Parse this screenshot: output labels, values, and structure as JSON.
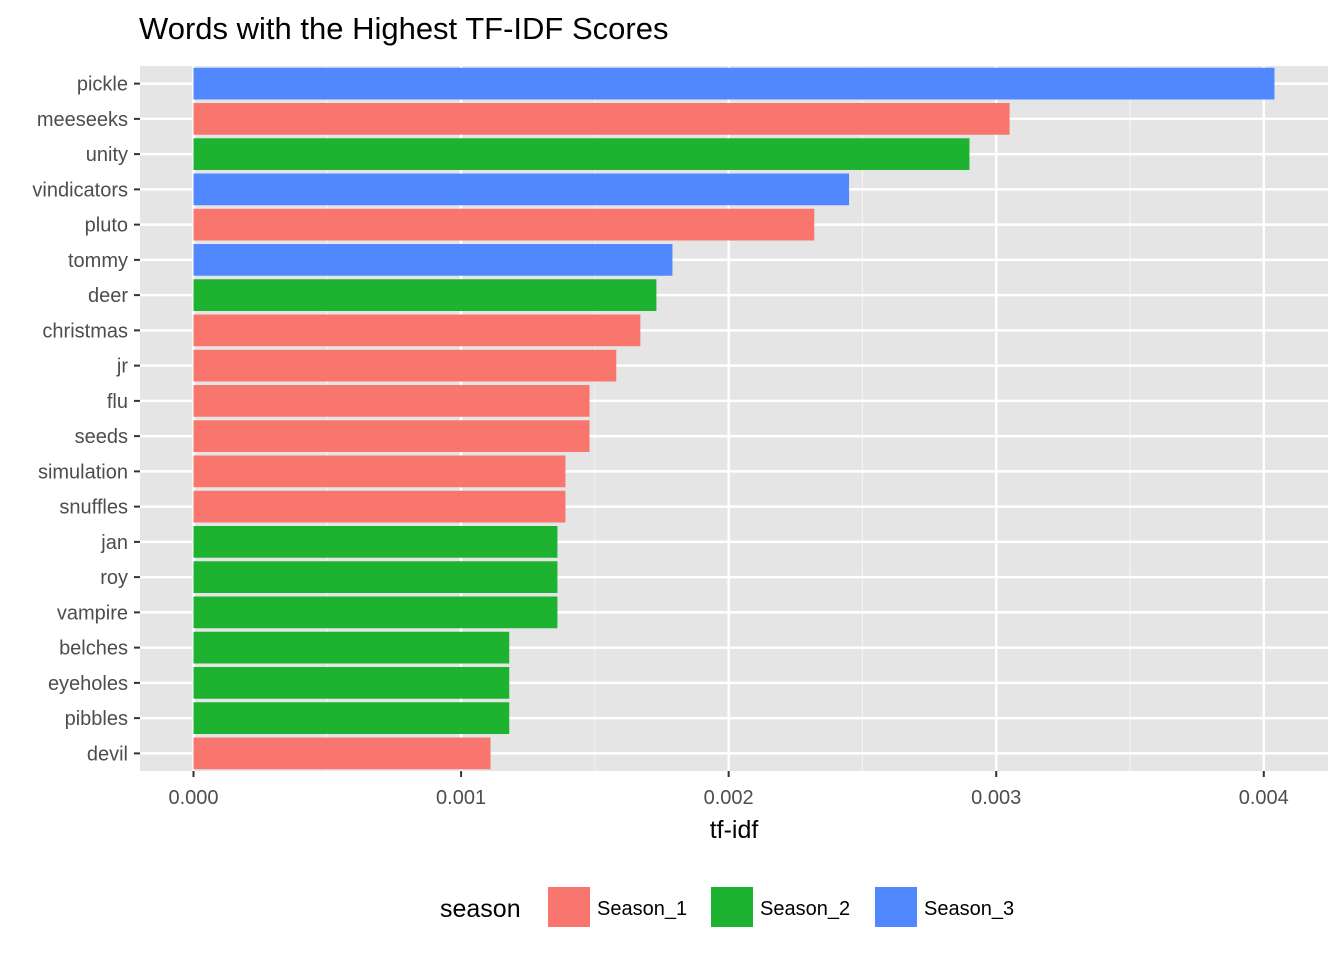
{
  "chart_data": {
    "type": "bar",
    "orientation": "horizontal",
    "title": "Words with the Highest TF-IDF Scores",
    "xlabel": "tf-idf",
    "ylabel": "",
    "xlim": [
      -0.0002,
      0.00424
    ],
    "x_ticks": [
      0.0,
      0.001,
      0.002,
      0.003,
      0.004
    ],
    "x_tick_labels": [
      "0.000",
      "0.001",
      "0.002",
      "0.003",
      "0.004"
    ],
    "grid": true,
    "legend": {
      "title": "season",
      "position": "bottom"
    },
    "series": [
      {
        "name": "Season_1",
        "color": "#F8766D"
      },
      {
        "name": "Season_2",
        "color": "#1DB230"
      },
      {
        "name": "Season_3",
        "color": "#5288FF"
      }
    ],
    "bars": [
      {
        "word": "pickle",
        "value": 0.00404,
        "season": "Season_3"
      },
      {
        "word": "meeseeks",
        "value": 0.00305,
        "season": "Season_1"
      },
      {
        "word": "unity",
        "value": 0.0029,
        "season": "Season_2"
      },
      {
        "word": "vindicators",
        "value": 0.00245,
        "season": "Season_3"
      },
      {
        "word": "pluto",
        "value": 0.00232,
        "season": "Season_1"
      },
      {
        "word": "tommy",
        "value": 0.00179,
        "season": "Season_3"
      },
      {
        "word": "deer",
        "value": 0.00173,
        "season": "Season_2"
      },
      {
        "word": "christmas",
        "value": 0.00167,
        "season": "Season_1"
      },
      {
        "word": "jr",
        "value": 0.00158,
        "season": "Season_1"
      },
      {
        "word": "flu",
        "value": 0.00148,
        "season": "Season_1"
      },
      {
        "word": "seeds",
        "value": 0.00148,
        "season": "Season_1"
      },
      {
        "word": "simulation",
        "value": 0.00139,
        "season": "Season_1"
      },
      {
        "word": "snuffles",
        "value": 0.00139,
        "season": "Season_1"
      },
      {
        "word": "jan",
        "value": 0.00136,
        "season": "Season_2"
      },
      {
        "word": "roy",
        "value": 0.00136,
        "season": "Season_2"
      },
      {
        "word": "vampire",
        "value": 0.00136,
        "season": "Season_2"
      },
      {
        "word": "belches",
        "value": 0.00118,
        "season": "Season_2"
      },
      {
        "word": "eyeholes",
        "value": 0.00118,
        "season": "Season_2"
      },
      {
        "word": "pibbles",
        "value": 0.00118,
        "season": "Season_2"
      },
      {
        "word": "devil",
        "value": 0.00111,
        "season": "Season_1"
      }
    ]
  }
}
